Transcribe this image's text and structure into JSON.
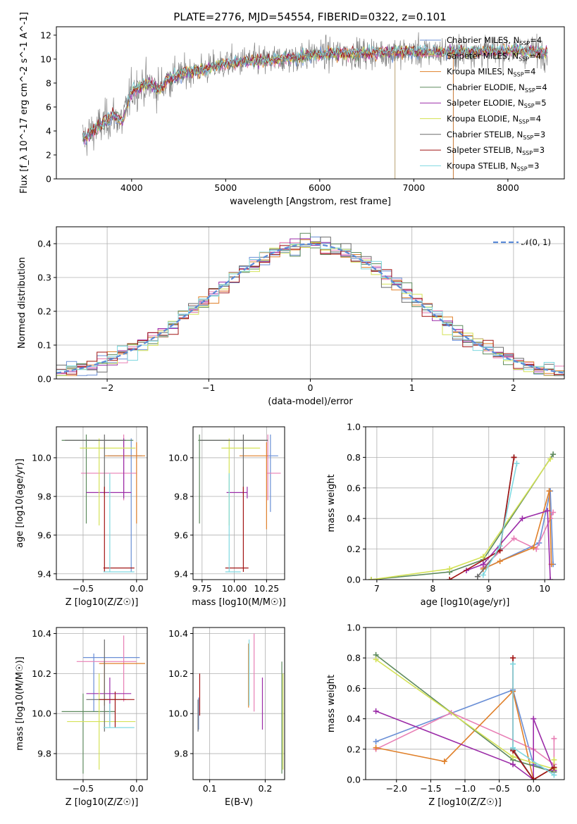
{
  "title": "PLATE=2776, MJD=54554, FIBERID=0322, z=0.101",
  "colors": {
    "chabrier_miles": "#6a8fd6",
    "salpeter_miles": "#e87fb5",
    "kroupa_miles": "#e0802a",
    "chabrier_elodie": "#5e8a5e",
    "salpeter_elodie": "#9b2ca8",
    "kroupa_elodie": "#d4e257",
    "chabrier_stelib": "#6b6b6b",
    "salpeter_stelib": "#a11414",
    "kroupa_stelib": "#7fd8e0",
    "normal": "#5b8bd8"
  },
  "chart_data": [
    {
      "id": "spectrum",
      "type": "line",
      "xlabel": "wavelength [Angstrom, rest frame]",
      "ylabel": "Flux [f_λ 10^-17 erg cm^-2 s^-1 A^-1]",
      "xlim": [
        3200,
        8600
      ],
      "ylim": [
        0,
        12.7
      ],
      "xticks": [
        4000,
        5000,
        6000,
        7000,
        8000
      ],
      "yticks": [
        0,
        2,
        4,
        6,
        8,
        10,
        12
      ],
      "legend_position": "top-right",
      "series": [
        {
          "name": "Chabrier MILES, N_SSP=4",
          "key": "chabrier_miles"
        },
        {
          "name": "Salpeter MILES, N_SSP=4",
          "key": "salpeter_miles"
        },
        {
          "name": "Kroupa MILES, N_SSP=4",
          "key": "kroupa_miles"
        },
        {
          "name": "Chabrier ELODIE, N_SSP=4",
          "key": "chabrier_elodie"
        },
        {
          "name": "Salpeter ELODIE, N_SSP=5",
          "key": "salpeter_elodie"
        },
        {
          "name": "Kroupa ELODIE, N_SSP=4",
          "key": "kroupa_elodie"
        },
        {
          "name": "Chabrier STELIB, N_SSP=3",
          "key": "chabrier_stelib"
        },
        {
          "name": "Salpeter STELIB, N_SSP=3",
          "key": "salpeter_stelib"
        },
        {
          "name": "Kroupa STELIB, N_SSP=3",
          "key": "kroupa_stelib"
        }
      ],
      "continuum": {
        "x": [
          3500,
          3600,
          3700,
          3800,
          3900,
          4000,
          4100,
          4200,
          4300,
          4400,
          4600,
          4800,
          5000,
          5200,
          5500,
          5800,
          6000,
          6500,
          7000,
          7500,
          8000,
          8400
        ],
        "y": [
          3.4,
          4.1,
          4.6,
          5.3,
          4.8,
          7.3,
          7.8,
          7.9,
          7.5,
          8.4,
          8.9,
          9.2,
          9.6,
          9.8,
          9.9,
          10.2,
          10.4,
          10.5,
          10.6,
          10.6,
          10.7,
          10.6
        ]
      }
    },
    {
      "id": "residuals",
      "type": "histogram",
      "xlabel": "(data-model)/error",
      "ylabel": "Normed distribution",
      "xlim": [
        -2.5,
        2.5
      ],
      "ylim": [
        0,
        0.45
      ],
      "xticks": [
        -2,
        -1,
        0,
        1,
        2
      ],
      "yticks": [
        0.0,
        0.1,
        0.2,
        0.3,
        0.4
      ],
      "legend": "𝒩(0, 1)",
      "legend_position": "top-right",
      "bin_width": 0.1
    },
    {
      "id": "age_vs_Z",
      "type": "errorbar",
      "xlabel": "Z [log10(Z/Z☉)]",
      "ylabel": "age [log10(age/yr)]",
      "xlim": [
        -0.75,
        0.1
      ],
      "ylim": [
        9.37,
        10.16
      ],
      "xticks": [
        -0.5,
        0.0
      ],
      "yticks": [
        9.4,
        9.6,
        9.8,
        10.0
      ],
      "points": [
        {
          "key": "chabrier_miles",
          "x": -0.05,
          "y": 10.01,
          "xe": [
            -0.27,
            0.05
          ],
          "ye": [
            9.41,
            10.1
          ]
        },
        {
          "key": "salpeter_miles",
          "x": -0.12,
          "y": 9.92,
          "xe": [
            -0.52,
            0.0
          ],
          "ye": [
            9.78,
            10.12
          ]
        },
        {
          "key": "kroupa_miles",
          "x": 0.0,
          "y": 10.01,
          "xe": [
            -0.3,
            0.08
          ],
          "ye": [
            9.66,
            10.08
          ]
        },
        {
          "key": "chabrier_elodie",
          "x": -0.47,
          "y": 10.09,
          "xe": [
            -0.7,
            -0.03
          ],
          "ye": [
            9.66,
            10.12
          ]
        },
        {
          "key": "salpeter_elodie",
          "x": -0.12,
          "y": 9.82,
          "xe": [
            -0.47,
            -0.05
          ],
          "ye": [
            9.79,
            10.1
          ]
        },
        {
          "key": "kroupa_elodie",
          "x": -0.35,
          "y": 10.05,
          "xe": [
            -0.53,
            -0.01
          ],
          "ye": [
            9.65,
            10.1
          ]
        },
        {
          "key": "chabrier_stelib",
          "x": -0.3,
          "y": 10.09,
          "xe": [
            -0.67,
            -0.1
          ],
          "ye": [
            9.81,
            10.12
          ]
        },
        {
          "key": "salpeter_stelib",
          "x": -0.3,
          "y": 9.43,
          "xe": [
            -0.31,
            -0.02
          ],
          "ye": [
            9.41,
            9.85
          ]
        },
        {
          "key": "kroupa_stelib",
          "x": -0.25,
          "y": 9.41,
          "xe": [
            -0.31,
            -0.02
          ],
          "ye": [
            9.41,
            9.92
          ]
        }
      ]
    },
    {
      "id": "age_vs_mass",
      "type": "errorbar",
      "xlabel": "mass [log10(M/M☉)]",
      "xlim": [
        9.68,
        10.39
      ],
      "ylim": [
        9.37,
        10.16
      ],
      "xticks": [
        9.75,
        10.0,
        10.25
      ],
      "yticks": [
        9.4,
        9.6,
        9.8,
        10.0
      ],
      "points": [
        {
          "key": "chabrier_miles",
          "x": 10.28,
          "y": 10.01,
          "xe": [
            10.25,
            10.34
          ],
          "ye": [
            9.72,
            10.12
          ]
        },
        {
          "key": "salpeter_miles",
          "x": 10.26,
          "y": 9.92,
          "xe": [
            10.25,
            10.36
          ],
          "ye": [
            9.78,
            10.12
          ]
        },
        {
          "key": "kroupa_miles",
          "x": 10.25,
          "y": 10.01,
          "xe": [
            10.04,
            10.26
          ],
          "ye": [
            9.63,
            10.08
          ]
        },
        {
          "key": "chabrier_elodie",
          "x": 9.73,
          "y": 10.09,
          "xe": [
            9.72,
            10.26
          ],
          "ye": [
            9.66,
            10.12
          ]
        },
        {
          "key": "salpeter_elodie",
          "x": 10.1,
          "y": 9.82,
          "xe": [
            9.94,
            10.1
          ],
          "ye": [
            9.79,
            9.85
          ]
        },
        {
          "key": "kroupa_elodie",
          "x": 9.96,
          "y": 10.05,
          "xe": [
            9.9,
            10.2
          ],
          "ye": [
            9.65,
            10.1
          ]
        },
        {
          "key": "chabrier_stelib",
          "x": 10.07,
          "y": 10.09,
          "xe": [
            9.73,
            10.26
          ],
          "ye": [
            9.81,
            10.12
          ]
        },
        {
          "key": "salpeter_stelib",
          "x": 10.07,
          "y": 9.43,
          "xe": [
            9.93,
            10.11
          ],
          "ye": [
            9.41,
            9.85
          ]
        },
        {
          "key": "kroupa_stelib",
          "x": 9.96,
          "y": 9.41,
          "xe": [
            9.93,
            10.05
          ],
          "ye": [
            9.41,
            9.92
          ]
        }
      ]
    },
    {
      "id": "weight_vs_age",
      "type": "line",
      "xlabel": "age [log10(age/yr)]",
      "ylabel": "mass weight",
      "xlim": [
        6.8,
        10.35
      ],
      "ylim": [
        0,
        1.0
      ],
      "xticks": [
        7,
        8,
        9,
        10
      ],
      "yticks": [
        0.0,
        0.2,
        0.4,
        0.6,
        0.8,
        1.0
      ],
      "series": [
        {
          "key": "chabrier_miles",
          "x": [
            8.9,
            9.9,
            10.1,
            10.15
          ],
          "y": [
            0.07,
            0.24,
            0.58,
            0.1
          ]
        },
        {
          "key": "salpeter_miles",
          "x": [
            8.9,
            9.45,
            9.85,
            10.1,
            10.15
          ],
          "y": [
            0.08,
            0.27,
            0.2,
            0.4,
            0.44
          ]
        },
        {
          "key": "kroupa_miles",
          "x": [
            8.9,
            9.2,
            9.8,
            10.08,
            10.12
          ],
          "y": [
            0.07,
            0.12,
            0.21,
            0.58,
            0.1
          ]
        },
        {
          "key": "chabrier_elodie",
          "x": [
            6.9,
            8.3,
            8.9,
            10.15
          ],
          "y": [
            0.0,
            0.05,
            0.13,
            0.82
          ]
        },
        {
          "key": "salpeter_elodie",
          "x": [
            8.6,
            8.9,
            9.6,
            10.05,
            10.1
          ],
          "y": [
            0.06,
            0.1,
            0.4,
            0.45,
            0.0
          ]
        },
        {
          "key": "kroupa_elodie",
          "x": [
            6.9,
            8.3,
            8.9,
            10.1
          ],
          "y": [
            0.0,
            0.07,
            0.15,
            0.79
          ]
        },
        {
          "key": "chabrier_stelib",
          "x": [
            8.8,
            9.2,
            9.45
          ],
          "y": [
            0.02,
            0.2,
            0.8
          ]
        },
        {
          "key": "salpeter_stelib",
          "x": [
            8.3,
            9.2,
            9.45
          ],
          "y": [
            0.0,
            0.19,
            0.8
          ]
        },
        {
          "key": "kroupa_stelib",
          "x": [
            8.9,
            9.2,
            9.5
          ],
          "y": [
            0.03,
            0.22,
            0.76
          ]
        }
      ]
    },
    {
      "id": "mass_vs_Z",
      "type": "errorbar",
      "xlabel": "Z [log10(Z/Z☉)]",
      "ylabel": "mass [log10(M/M☉)]",
      "xlim": [
        -0.75,
        0.1
      ],
      "ylim": [
        9.67,
        10.43
      ],
      "xticks": [
        -0.5,
        0.0
      ],
      "yticks": [
        9.8,
        10.0,
        10.2,
        10.4
      ],
      "points": [
        {
          "key": "chabrier_miles",
          "x": -0.4,
          "y": 10.28,
          "xe": [
            -0.5,
            0.03
          ],
          "ye": [
            10.01,
            10.3
          ]
        },
        {
          "key": "salpeter_miles",
          "x": -0.12,
          "y": 10.26,
          "xe": [
            -0.56,
            0.0
          ],
          "ye": [
            10.06,
            10.39
          ]
        },
        {
          "key": "kroupa_miles",
          "x": -0.3,
          "y": 10.25,
          "xe": [
            -0.35,
            0.08
          ],
          "ye": [
            10.04,
            10.26
          ]
        },
        {
          "key": "chabrier_elodie",
          "x": -0.5,
          "y": 10.01,
          "xe": [
            -0.7,
            -0.2
          ],
          "ye": [
            9.7,
            10.1
          ]
        },
        {
          "key": "salpeter_elodie",
          "x": -0.25,
          "y": 10.1,
          "xe": [
            -0.47,
            -0.05
          ],
          "ye": [
            9.94,
            10.18
          ]
        },
        {
          "key": "kroupa_elodie",
          "x": -0.35,
          "y": 9.96,
          "xe": [
            -0.65,
            -0.01
          ],
          "ye": [
            9.72,
            10.2
          ]
        },
        {
          "key": "chabrier_stelib",
          "x": -0.3,
          "y": 10.07,
          "xe": [
            -0.47,
            -0.1
          ],
          "ye": [
            9.91,
            10.37
          ]
        },
        {
          "key": "salpeter_stelib",
          "x": -0.2,
          "y": 10.07,
          "xe": [
            -0.35,
            -0.02
          ],
          "ye": [
            9.93,
            10.11
          ]
        },
        {
          "key": "kroupa_stelib",
          "x": -0.25,
          "y": 9.93,
          "xe": [
            -0.31,
            -0.02
          ],
          "ye": [
            9.93,
            10.05
          ]
        }
      ]
    },
    {
      "id": "mass_vs_ebv",
      "type": "errorbar",
      "xlabel": "E(B-V)",
      "xlim": [
        0.07,
        0.235
      ],
      "ylim": [
        9.67,
        10.43
      ],
      "xticks": [
        0.1,
        0.2
      ],
      "yticks": [
        9.8,
        10.0,
        10.2,
        10.4
      ],
      "points": [
        {
          "key": "chabrier_miles",
          "x": 0.08,
          "y": 10.0,
          "xe": [
            0.08,
            0.08
          ],
          "ye": [
            9.92,
            10.08
          ]
        },
        {
          "key": "salpeter_miles",
          "x": 0.18,
          "y": 10.2,
          "xe": [
            0.18,
            0.18
          ],
          "ye": [
            10.01,
            10.4
          ]
        },
        {
          "key": "kroupa_miles",
          "x": 0.17,
          "y": 10.2,
          "xe": [
            0.17,
            0.17
          ],
          "ye": [
            10.03,
            10.35
          ]
        },
        {
          "key": "chabrier_elodie",
          "x": 0.23,
          "y": 10.0,
          "xe": [
            0.23,
            0.23
          ],
          "ye": [
            9.7,
            10.26
          ]
        },
        {
          "key": "salpeter_elodie",
          "x": 0.195,
          "y": 10.05,
          "xe": [
            0.195,
            0.195
          ],
          "ye": [
            9.92,
            10.18
          ]
        },
        {
          "key": "kroupa_elodie",
          "x": 0.232,
          "y": 9.95,
          "xe": [
            0.232,
            0.232
          ],
          "ye": [
            9.72,
            10.2
          ]
        },
        {
          "key": "chabrier_stelib",
          "x": 0.079,
          "y": 10.0,
          "xe": [
            0.079,
            0.079
          ],
          "ye": [
            9.91,
            10.07
          ]
        },
        {
          "key": "salpeter_stelib",
          "x": 0.082,
          "y": 10.1,
          "xe": [
            0.082,
            0.082
          ],
          "ye": [
            9.99,
            10.2
          ]
        },
        {
          "key": "kroupa_stelib",
          "x": 0.171,
          "y": 10.2,
          "xe": [
            0.171,
            0.171
          ],
          "ye": [
            10.04,
            10.37
          ]
        }
      ]
    },
    {
      "id": "weight_vs_Z",
      "type": "line",
      "xlabel": "Z [log10(Z/Z☉)]",
      "ylabel": "mass weight",
      "xlim": [
        -2.45,
        0.45
      ],
      "ylim": [
        0,
        1.0
      ],
      "xticks": [
        -2.0,
        -1.5,
        -1.0,
        -0.5,
        0.0
      ],
      "yticks": [
        0.0,
        0.2,
        0.4,
        0.6,
        0.8,
        1.0
      ],
      "series": [
        {
          "key": "chabrier_miles",
          "x": [
            -2.3,
            -0.3,
            0.0,
            0.3
          ],
          "y": [
            0.25,
            0.59,
            0.1,
            0.05
          ]
        },
        {
          "key": "salpeter_miles",
          "x": [
            -2.3,
            -1.2,
            0.0,
            0.3,
            0.3
          ],
          "y": [
            0.2,
            0.44,
            0.2,
            0.1,
            0.27
          ]
        },
        {
          "key": "kroupa_miles",
          "x": [
            -2.3,
            -1.3,
            -0.3,
            0.0,
            0.3
          ],
          "y": [
            0.21,
            0.12,
            0.58,
            0.0,
            0.08
          ]
        },
        {
          "key": "chabrier_elodie",
          "x": [
            -2.3,
            -0.3,
            0.3
          ],
          "y": [
            0.82,
            0.13,
            0.05
          ]
        },
        {
          "key": "salpeter_elodie",
          "x": [
            -2.3,
            -0.3,
            0.0,
            0.0,
            0.3
          ],
          "y": [
            0.45,
            0.1,
            0.0,
            0.4,
            0.06
          ]
        },
        {
          "key": "kroupa_elodie",
          "x": [
            -2.3,
            -0.3,
            0.3,
            0.3
          ],
          "y": [
            0.79,
            0.15,
            0.07,
            0.13
          ]
        },
        {
          "key": "chabrier_stelib",
          "x": [
            -0.3,
            0.0,
            0.3
          ],
          "y": [
            0.2,
            0.0,
            0.08
          ]
        },
        {
          "key": "salpeter_stelib",
          "x": [
            -0.3,
            -0.3,
            0.0,
            0.3
          ],
          "y": [
            0.8,
            0.19,
            0.0,
            0.08
          ]
        },
        {
          "key": "kroupa_stelib",
          "x": [
            -0.3,
            -0.3,
            0.3
          ],
          "y": [
            0.76,
            0.21,
            0.03
          ]
        }
      ]
    }
  ]
}
